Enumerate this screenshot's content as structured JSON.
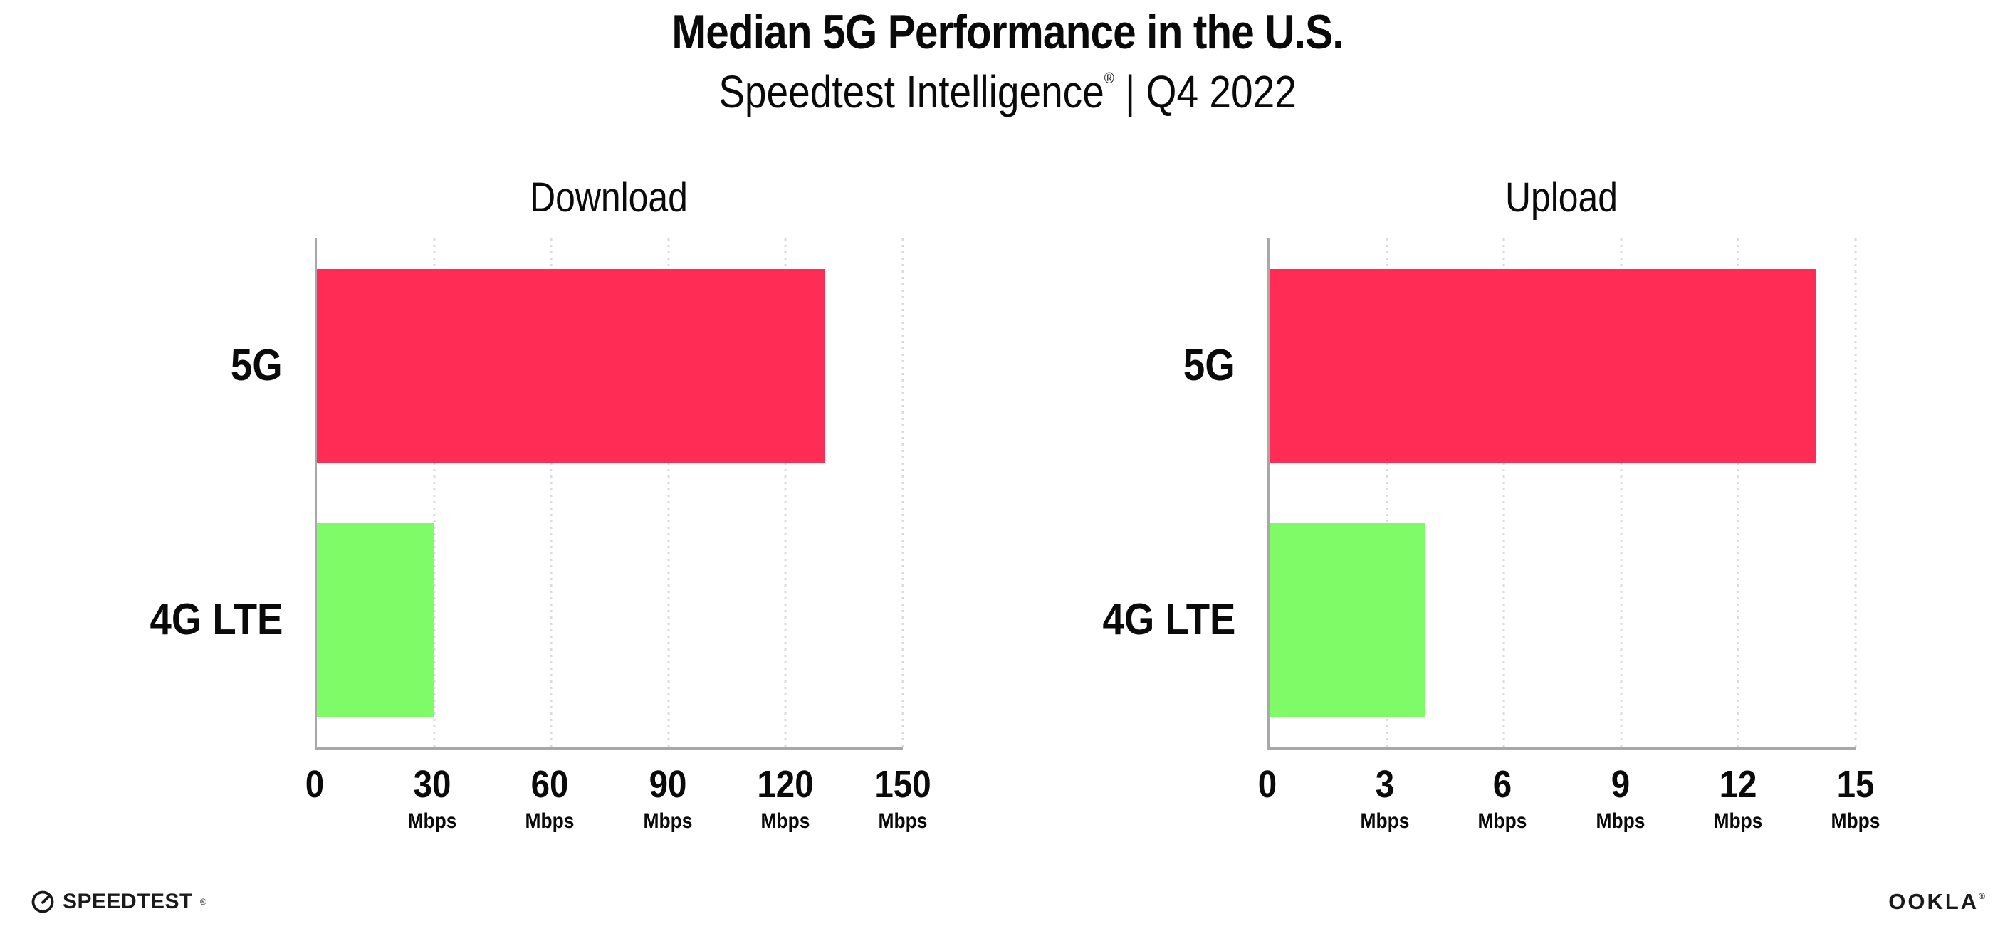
{
  "header": {
    "title": "Median 5G Performance in the U.S.",
    "subtitle_brand": "Speedtest Intelligence",
    "subtitle_mark": "®",
    "subtitle_separator": " | ",
    "subtitle_period": "Q4 2022"
  },
  "chart_data": [
    {
      "type": "bar",
      "orientation": "horizontal",
      "title": "Download",
      "categories": [
        "5G",
        "4G LTE"
      ],
      "values": [
        130,
        30
      ],
      "unit": "Mbps",
      "xlim": [
        0,
        150
      ],
      "xticks": [
        0,
        30,
        60,
        90,
        120,
        150
      ],
      "bar_colors": [
        "#FF2D55",
        "#7EFB66"
      ],
      "grid": "vertical-dotted",
      "legend": "none"
    },
    {
      "type": "bar",
      "orientation": "horizontal",
      "title": "Upload",
      "categories": [
        "5G",
        "4G LTE"
      ],
      "values": [
        14,
        4
      ],
      "unit": "Mbps",
      "xlim": [
        0,
        15
      ],
      "xticks": [
        0,
        3,
        6,
        9,
        12,
        15
      ],
      "bar_colors": [
        "#FF2D55",
        "#7EFB66"
      ],
      "grid": "vertical-dotted",
      "legend": "none"
    }
  ],
  "footer": {
    "speedtest_label": "SPEEDTEST",
    "speedtest_mark": "®",
    "ookla_label": "OOKLA",
    "ookla_mark": "®"
  }
}
